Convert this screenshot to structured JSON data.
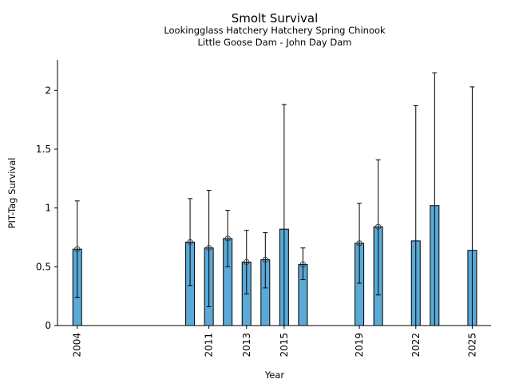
{
  "chart_data": {
    "type": "bar",
    "title": "Smolt Survival",
    "subtitle_lines": [
      "Lookingglass Hatchery Hatchery Spring Chinook",
      "Little Goose Dam - John Day Dam"
    ],
    "xlabel": "Year",
    "ylabel": "PIT-Tag Survival",
    "xlim": [
      2002.95,
      2026
    ],
    "ylim": [
      0,
      2.26
    ],
    "x_ticks": [
      2004,
      2011,
      2013,
      2015,
      2019,
      2022,
      2025
    ],
    "x_tick_labels": [
      "2004",
      "2011",
      "2013",
      "2015",
      "2019",
      "2022",
      "2025"
    ],
    "y_ticks": [
      0,
      0.5,
      1,
      1.5,
      2
    ],
    "y_tick_labels": [
      "0",
      "0.5",
      "1",
      "1.5",
      "2"
    ],
    "grid": false,
    "bar_color": "#5aa9d6",
    "edge_color": "#000000",
    "series": [
      {
        "name": "PIT-Tag Survival",
        "points": [
          {
            "year": 2004,
            "value": 0.65,
            "upper": 1.06,
            "lower": 0.24,
            "marker": true
          },
          {
            "year": 2010,
            "value": 0.71,
            "upper": 1.08,
            "lower": 0.34,
            "marker": true
          },
          {
            "year": 2011,
            "value": 0.66,
            "upper": 1.15,
            "lower": 0.16,
            "marker": true
          },
          {
            "year": 2012,
            "value": 0.74,
            "upper": 0.98,
            "lower": 0.5,
            "marker": true
          },
          {
            "year": 2013,
            "value": 0.54,
            "upper": 0.81,
            "lower": 0.27,
            "marker": true
          },
          {
            "year": 2014,
            "value": 0.56,
            "upper": 0.79,
            "lower": 0.32,
            "marker": true
          },
          {
            "year": 2015,
            "value": 0.82,
            "upper": 1.88,
            "lower": 0.0,
            "marker": false
          },
          {
            "year": 2016,
            "value": 0.52,
            "upper": 0.66,
            "lower": 0.39,
            "marker": true
          },
          {
            "year": 2019,
            "value": 0.7,
            "upper": 1.04,
            "lower": 0.36,
            "marker": true
          },
          {
            "year": 2020,
            "value": 0.84,
            "upper": 1.41,
            "lower": 0.26,
            "marker": true
          },
          {
            "year": 2022,
            "value": 0.72,
            "upper": 1.87,
            "lower": 0.0,
            "marker": false
          },
          {
            "year": 2023,
            "value": 1.02,
            "upper": 2.15,
            "lower": 0.0,
            "marker": false
          },
          {
            "year": 2025,
            "value": 0.64,
            "upper": 2.03,
            "lower": 0.0,
            "marker": false
          }
        ]
      }
    ]
  }
}
